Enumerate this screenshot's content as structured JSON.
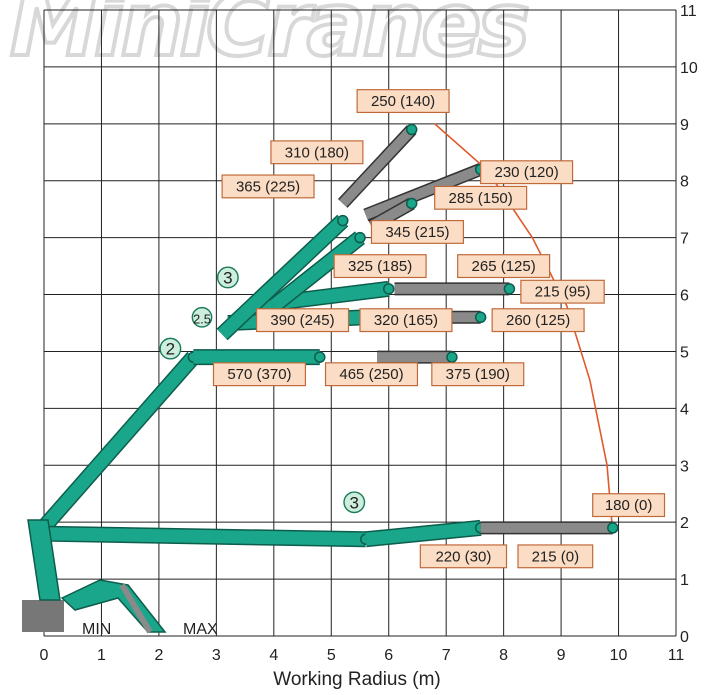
{
  "chart_data": {
    "type": "table",
    "title": "",
    "xlabel": "Working Radius (m)",
    "ylabel": "",
    "xlim": [
      0,
      11
    ],
    "ylim": [
      0,
      11
    ],
    "x_ticks": [
      "0",
      "1",
      "2",
      "3",
      "4",
      "5",
      "6",
      "7",
      "8",
      "9",
      "10",
      "11"
    ],
    "y_ticks": [
      "0",
      "1",
      "2",
      "3",
      "4",
      "5",
      "6",
      "7",
      "8",
      "9",
      "10",
      "11"
    ],
    "grid": true,
    "boom_labels": [
      "MIN",
      "MAX"
    ],
    "watermark": "MiniCranes",
    "colors": {
      "boom": "#1aa68a",
      "extension": "#8a8a8a",
      "envelope": "#e05a2b",
      "label_fill": "#fbdcc4",
      "label_stroke": "#c06a3a",
      "marker_fill": "#cdeedd",
      "marker_stroke": "#1a7a5a",
      "grid": "#222222"
    },
    "angle_markers": [
      {
        "text": "3",
        "x": 3.2,
        "y": 6.3,
        "r": 0.18
      },
      {
        "text": "2.5",
        "x": 2.75,
        "y": 5.6,
        "r": 0.17
      },
      {
        "text": "2",
        "x": 2.2,
        "y": 5.05,
        "r": 0.18
      },
      {
        "text": "3",
        "x": 5.4,
        "y": 2.35,
        "r": 0.18
      }
    ],
    "load_labels": [
      {
        "text": "250 (140)",
        "x": 5.45,
        "y": 9.4,
        "w": 1.6
      },
      {
        "text": "310 (180)",
        "x": 3.95,
        "y": 8.5,
        "w": 1.6
      },
      {
        "text": "230 (120)",
        "x": 7.6,
        "y": 8.15,
        "w": 1.6
      },
      {
        "text": "365 (225)",
        "x": 3.1,
        "y": 7.9,
        "w": 1.6
      },
      {
        "text": "285 (150)",
        "x": 6.8,
        "y": 7.7,
        "w": 1.6
      },
      {
        "text": "345 (215)",
        "x": 5.7,
        "y": 7.1,
        "w": 1.6
      },
      {
        "text": "325 (185)",
        "x": 5.05,
        "y": 6.5,
        "w": 1.6
      },
      {
        "text": "265 (125)",
        "x": 7.2,
        "y": 6.5,
        "w": 1.6
      },
      {
        "text": "215 (95)",
        "x": 8.3,
        "y": 6.05,
        "w": 1.45
      },
      {
        "text": "390 (245)",
        "x": 3.7,
        "y": 5.55,
        "w": 1.6
      },
      {
        "text": "320 (165)",
        "x": 5.5,
        "y": 5.55,
        "w": 1.6
      },
      {
        "text": "260 (125)",
        "x": 7.8,
        "y": 5.55,
        "w": 1.6
      },
      {
        "text": "570 (370)",
        "x": 2.95,
        "y": 4.6,
        "w": 1.6
      },
      {
        "text": "465 (250)",
        "x": 4.9,
        "y": 4.6,
        "w": 1.6
      },
      {
        "text": "375 (190)",
        "x": 6.75,
        "y": 4.6,
        "w": 1.6
      },
      {
        "text": "180 (0)",
        "x": 9.55,
        "y": 2.3,
        "w": 1.25
      },
      {
        "text": "220 (30)",
        "x": 6.55,
        "y": 1.4,
        "w": 1.5
      },
      {
        "text": "215 (0)",
        "x": 8.25,
        "y": 1.4,
        "w": 1.3
      }
    ],
    "envelope_points": [
      [
        6.8,
        9.0
      ],
      [
        7.7,
        8.2
      ],
      [
        8.5,
        7.0
      ],
      [
        9.1,
        5.8
      ],
      [
        9.5,
        4.5
      ],
      [
        9.8,
        3.0
      ],
      [
        9.9,
        1.8
      ]
    ],
    "booms": [
      {
        "kind": "main",
        "points": [
          [
            -0.1,
            1.8
          ],
          [
            2.6,
            4.9
          ]
        ]
      },
      {
        "kind": "main",
        "points": [
          [
            -0.1,
            1.8
          ],
          [
            5.6,
            1.7
          ]
        ]
      },
      {
        "kind": "main",
        "points": [
          [
            2.6,
            4.9
          ],
          [
            4.8,
            4.9
          ]
        ]
      },
      {
        "kind": "main",
        "points": [
          [
            3.2,
            5.5
          ],
          [
            5.6,
            5.6
          ]
        ]
      },
      {
        "kind": "main",
        "points": [
          [
            3.6,
            5.8
          ],
          [
            6.0,
            6.1
          ]
        ]
      },
      {
        "kind": "main",
        "points": [
          [
            3.1,
            5.3
          ],
          [
            5.2,
            7.3
          ]
        ]
      },
      {
        "kind": "main",
        "points": [
          [
            4.0,
            5.8
          ],
          [
            5.5,
            7.0
          ]
        ]
      },
      {
        "kind": "main",
        "points": [
          [
            5.6,
            1.7
          ],
          [
            7.6,
            1.9
          ]
        ]
      },
      {
        "kind": "ext",
        "points": [
          [
            5.8,
            4.9
          ],
          [
            7.1,
            4.9
          ]
        ]
      },
      {
        "kind": "ext",
        "points": [
          [
            5.7,
            5.6
          ],
          [
            7.6,
            5.6
          ]
        ]
      },
      {
        "kind": "ext",
        "points": [
          [
            6.1,
            6.1
          ],
          [
            8.1,
            6.1
          ]
        ]
      },
      {
        "kind": "ext",
        "points": [
          [
            7.6,
            1.9
          ],
          [
            9.9,
            1.9
          ]
        ]
      },
      {
        "kind": "ext",
        "points": [
          [
            5.2,
            7.6
          ],
          [
            6.4,
            8.9
          ]
        ]
      },
      {
        "kind": "ext",
        "points": [
          [
            5.6,
            7.4
          ],
          [
            7.6,
            8.2
          ]
        ]
      },
      {
        "kind": "ext",
        "points": [
          [
            5.7,
            7.2
          ],
          [
            6.4,
            7.6
          ]
        ]
      }
    ]
  }
}
